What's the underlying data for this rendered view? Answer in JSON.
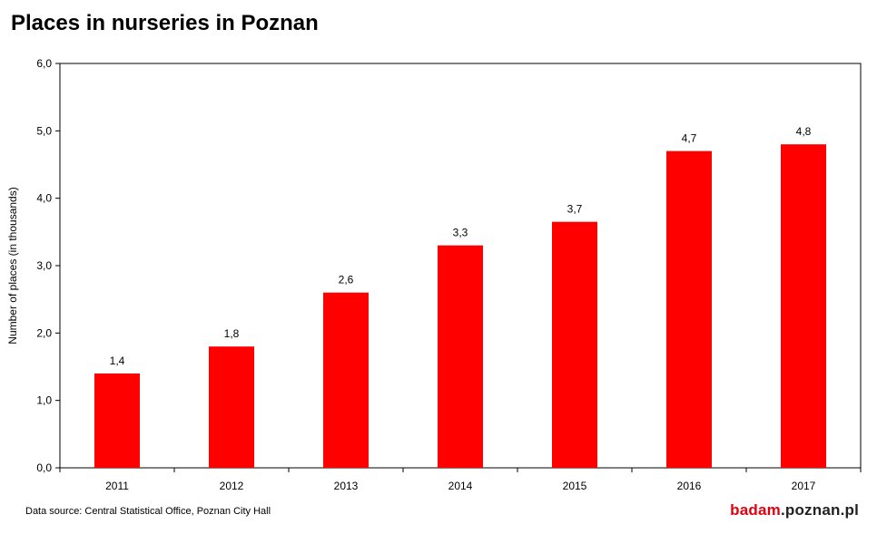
{
  "title": "Places in nurseries in Poznan",
  "source_note": "Data source: Central Statistical Office, Poznan City Hall",
  "brand": {
    "part1": "badam",
    "part2": ".poznan.pl"
  },
  "colors": {
    "bar": "#ff0000",
    "axis": "#000000",
    "brand_red": "#e3000f"
  },
  "chart_data": {
    "type": "bar",
    "title": "Places in nurseries in Poznan",
    "xlabel": "",
    "ylabel": "Number of places (in thousands)",
    "categories": [
      "2011",
      "2012",
      "2013",
      "2014",
      "2015",
      "2016",
      "2017"
    ],
    "values": [
      1.4,
      1.8,
      2.6,
      3.3,
      3.65,
      4.7,
      4.8
    ],
    "data_labels": [
      "1,4",
      "1,8",
      "2,6",
      "3,3",
      "3,7",
      "4,7",
      "4,8"
    ],
    "ylim": [
      0,
      6
    ],
    "yticks": [
      0,
      1,
      2,
      3,
      4,
      5,
      6
    ],
    "ytick_labels": [
      "0,0",
      "1,0",
      "2,0",
      "3,0",
      "4,0",
      "5,0",
      "6,0"
    ],
    "grid": false,
    "legend": "none"
  }
}
